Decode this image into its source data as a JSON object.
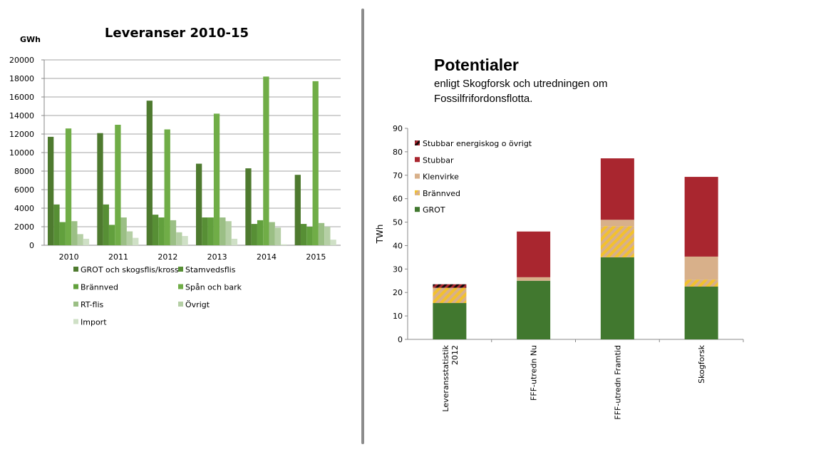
{
  "chart_data": [
    {
      "type": "bar",
      "title": "Leveranser 2010-15",
      "ylabel": "GWh",
      "xlabel": "",
      "ylim": [
        0,
        20000
      ],
      "yticks": [
        0,
        2000,
        4000,
        6000,
        8000,
        10000,
        12000,
        14000,
        16000,
        18000,
        20000
      ],
      "grid": true,
      "legend": "bottom",
      "categories": [
        "2010",
        "2011",
        "2012",
        "2013",
        "2014",
        "2015"
      ],
      "series": [
        {
          "name": "GROT och skogsflis/kross",
          "color": "#4e7a2f",
          "values": [
            11700,
            12100,
            15600,
            8800,
            8300,
            7600
          ]
        },
        {
          "name": "Stamvedsflis",
          "color": "#578f35",
          "values": [
            4400,
            4400,
            3300,
            3000,
            2300,
            2300
          ]
        },
        {
          "name": "Brännved",
          "color": "#62a03d",
          "values": [
            2500,
            2200,
            3000,
            3000,
            2700,
            2000
          ]
        },
        {
          "name": "Spån och bark",
          "color": "#70ad47",
          "values": [
            12600,
            13000,
            12500,
            14200,
            18200,
            17700
          ]
        },
        {
          "name": "RT-flis",
          "color": "#9bbf85",
          "values": [
            2600,
            3000,
            2700,
            3000,
            2500,
            2400
          ]
        },
        {
          "name": "Övrigt",
          "color": "#b5cfa5",
          "values": [
            1200,
            1500,
            1400,
            2600,
            1900,
            2000
          ]
        },
        {
          "name": "Import",
          "color": "#cfe0c6",
          "values": [
            700,
            800,
            1000,
            700,
            100,
            600
          ]
        }
      ]
    },
    {
      "type": "bar",
      "stacked": true,
      "title": "Potentialer",
      "subtitle": "enligt Skogforsk och utredningen om Fossilfrifordonsflotta.",
      "ylabel": "TWh",
      "xlabel": "",
      "ylim": [
        0,
        90
      ],
      "yticks": [
        0,
        10,
        20,
        30,
        40,
        50,
        60,
        70,
        80,
        90
      ],
      "grid": false,
      "legend": "top-left",
      "categories": [
        "Leveransstatistik 2012",
        "FFF-utredn Nu",
        "FFF-utredn Framtid",
        "Skogforsk"
      ],
      "series": [
        {
          "name": "GROT",
          "color": "#41782f",
          "values": [
            15.5,
            25,
            35,
            22.5
          ]
        },
        {
          "name": "Brännved",
          "color": "#f2c12e",
          "hatch": true,
          "values": [
            6.5,
            0,
            13.3,
            3
          ]
        },
        {
          "name": "Klenvirke",
          "color": "#d8b08a",
          "values": [
            0,
            1.5,
            2.7,
            9.8
          ]
        },
        {
          "name": "Stubbar",
          "color": "#a9262f",
          "values": [
            0,
            19.5,
            26.2,
            34
          ]
        },
        {
          "name": "Stubbar energiskog o övrigt",
          "color": "#1a0a0a",
          "hatch": true,
          "values": [
            1.5,
            0,
            0,
            0
          ]
        }
      ]
    }
  ]
}
